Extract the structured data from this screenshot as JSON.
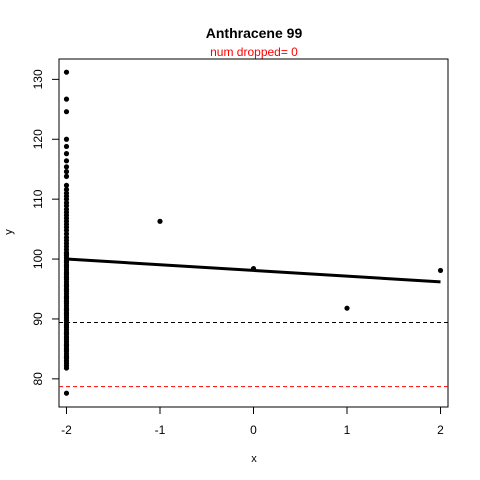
{
  "chart_data": {
    "type": "scatter",
    "title": "Anthracene 99",
    "subtitle": "num dropped= 0",
    "subtitle_color": "#ff0000",
    "xlabel": "x",
    "ylabel": "y",
    "xlim": [
      -2.08,
      2.08
    ],
    "ylim": [
      75.3,
      133.4
    ],
    "xticks": [
      -2,
      -1,
      0,
      1,
      2
    ],
    "xtick_labels": [
      "-2",
      "-1",
      "0",
      "1",
      "2"
    ],
    "yticks": [
      80,
      90,
      100,
      110,
      120,
      130
    ],
    "ytick_labels": [
      "80",
      "90",
      "100",
      "110",
      "120",
      "130"
    ],
    "grid": false,
    "points": {
      "x": [
        -2,
        -2,
        -2,
        -2,
        -2,
        -2,
        -2,
        -2,
        -2,
        -2,
        -2,
        -2,
        -2,
        -2,
        -2,
        -2,
        -2,
        -2,
        -2,
        -2,
        -2,
        -2,
        -2,
        -2,
        -2,
        -2,
        -2,
        -2,
        -2,
        -2,
        -2,
        -2,
        -2,
        -2,
        -2,
        -2,
        -2,
        -2,
        -2,
        -2,
        -2,
        -2,
        -2,
        -2,
        -2,
        -2,
        -2,
        -2,
        -2,
        -2,
        -2,
        -2,
        -2,
        -2,
        -2,
        -2,
        -2,
        -2,
        -2,
        -2,
        -2,
        -2,
        -2,
        -2,
        -2,
        -2,
        -2,
        -2,
        -2,
        -2,
        -2,
        -2,
        -2,
        -2,
        -2,
        -2,
        -2,
        -2,
        -2,
        -2,
        -2,
        -2,
        -2,
        -2,
        -2,
        -2,
        -2,
        -2,
        -2,
        -2,
        -2,
        -2,
        -2,
        -2,
        -2,
        -2,
        -2,
        -2,
        -1,
        0,
        1,
        2
      ],
      "y": [
        131.2,
        126.7,
        124.6,
        120.0,
        118.8,
        117.6,
        116.4,
        115.4,
        114.6,
        113.8,
        112.3,
        111.6,
        111.0,
        110.5,
        110.0,
        109.4,
        108.9,
        108.3,
        107.8,
        107.3,
        106.8,
        106.3,
        105.8,
        105.3,
        104.8,
        104.2,
        103.6,
        103.1,
        102.6,
        102.1,
        101.6,
        101.1,
        100.6,
        100.2,
        99.8,
        99.4,
        99.0,
        98.6,
        98.2,
        97.8,
        97.4,
        97.0,
        96.6,
        96.2,
        95.8,
        95.4,
        95.0,
        94.6,
        94.2,
        93.8,
        93.4,
        93.0,
        92.6,
        92.2,
        91.8,
        91.4,
        91.0,
        90.6,
        90.2,
        89.8,
        89.4,
        89.0,
        88.6,
        88.2,
        87.8,
        87.4,
        87.0,
        86.6,
        86.2,
        85.8,
        85.4,
        85.0,
        84.6,
        84.2,
        83.8,
        83.4,
        83.0,
        82.6,
        82.2,
        81.8,
        100.9,
        99.6,
        98.9,
        97.6,
        96.9,
        95.6,
        94.9,
        93.6,
        92.9,
        91.6,
        90.9,
        88.9,
        87.6,
        86.9,
        85.6,
        84.9,
        83.6,
        77.6,
        106.3,
        98.4,
        91.8,
        98.1
      ]
    },
    "fit_line": {
      "x": [
        -2,
        2
      ],
      "y": [
        100.0,
        96.2
      ],
      "color": "#000000",
      "style": "solid"
    },
    "hlines": [
      {
        "y": 89.4,
        "color": "#000000",
        "style": "dashed"
      },
      {
        "y": 78.7,
        "color": "#ff0000",
        "style": "dashed"
      }
    ]
  }
}
